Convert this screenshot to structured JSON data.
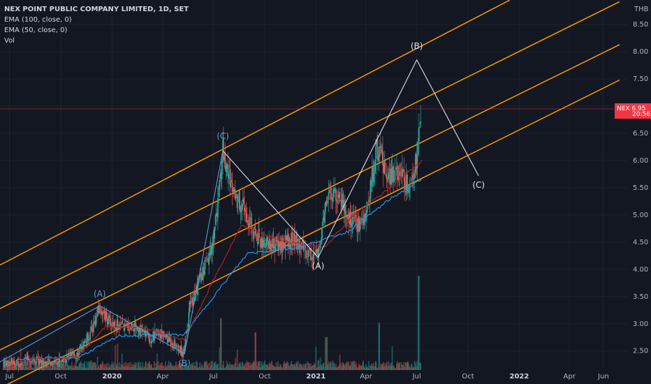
{
  "legend": {
    "title": "NEX POINT PUBLIC COMPANY LIMITED, 1D, SET",
    "ema100": "EMA (100, close, 0)",
    "ema50": "EMA (50, close, 0)",
    "vol": "Vol"
  },
  "price_badge": {
    "symbol": "NEX",
    "value": "6.95",
    "countdown": "20:56"
  },
  "colors": {
    "background": "#131722",
    "grid": "#1e222d",
    "up": "#26a69a",
    "down": "#ef5350",
    "ema100": "#2196f3",
    "ema50": "#b71c1c",
    "channel": "#ff9800",
    "wave_white": "#e0e3eb",
    "wave_blue": "#5b9bd5",
    "price_line": "#f23645"
  },
  "chart_data": {
    "type": "candlestick",
    "currency": "THB",
    "y_ticks": [
      "2.50",
      "3.00",
      "3.50",
      "4.00",
      "4.50",
      "5.00",
      "5.50",
      "6.00",
      "6.50",
      "7.00",
      "7.50",
      "8.00",
      "8.50"
    ],
    "ylim": [
      2.15,
      8.72
    ],
    "x_labels": [
      "Jul",
      "Oct",
      "2020",
      "Apr",
      "Jul",
      "Oct",
      "2021",
      "Apr",
      "Jul",
      "Oct",
      "2022",
      "Apr",
      "Jun"
    ],
    "x_label_years": [
      "2020",
      "2021",
      "2022"
    ],
    "last_price": 6.95,
    "price_path": [
      [
        "2019-06-20",
        2.3
      ],
      [
        "2019-07-15",
        2.28
      ],
      [
        "2019-08-10",
        2.35
      ],
      [
        "2019-09-05",
        2.28
      ],
      [
        "2019-10-01",
        2.33
      ],
      [
        "2019-11-01",
        2.45
      ],
      [
        "2019-11-25",
        2.85
      ],
      [
        "2019-12-10",
        3.3
      ],
      [
        "2019-12-25",
        3.05
      ],
      [
        "2020-01-15",
        2.95
      ],
      [
        "2020-02-15",
        2.95
      ],
      [
        "2020-03-10",
        2.72
      ],
      [
        "2020-03-25",
        2.85
      ],
      [
        "2020-04-20",
        2.65
      ],
      [
        "2020-05-08",
        2.45
      ],
      [
        "2020-05-20",
        3.3
      ],
      [
        "2020-06-10",
        3.9
      ],
      [
        "2020-06-25",
        4.2
      ],
      [
        "2020-07-10",
        5.2
      ],
      [
        "2020-07-18",
        6.18
      ],
      [
        "2020-08-01",
        5.6
      ],
      [
        "2020-08-20",
        5.2
      ],
      [
        "2020-09-10",
        4.7
      ],
      [
        "2020-10-01",
        4.5
      ],
      [
        "2020-10-25",
        4.45
      ],
      [
        "2020-11-20",
        4.55
      ],
      [
        "2020-12-20",
        4.3
      ],
      [
        "2021-01-08",
        4.25
      ],
      [
        "2021-01-20",
        5.3
      ],
      [
        "2021-02-10",
        5.45
      ],
      [
        "2021-03-01",
        4.95
      ],
      [
        "2021-03-20",
        4.8
      ],
      [
        "2021-04-05",
        5.1
      ],
      [
        "2021-04-20",
        6.3
      ],
      [
        "2021-05-10",
        5.7
      ],
      [
        "2021-05-30",
        5.8
      ],
      [
        "2021-06-15",
        5.55
      ],
      [
        "2021-07-01",
        6.0
      ],
      [
        "2021-07-10",
        6.95
      ]
    ],
    "ema100_path": [
      [
        "2019-07-15",
        2.35
      ],
      [
        "2019-11-01",
        2.38
      ],
      [
        "2020-01-15",
        2.78
      ],
      [
        "2020-05-10",
        2.8
      ],
      [
        "2020-07-01",
        3.5
      ],
      [
        "2020-09-01",
        4.3
      ],
      [
        "2020-12-01",
        4.4
      ],
      [
        "2021-03-01",
        4.7
      ],
      [
        "2021-05-15",
        5.3
      ],
      [
        "2021-07-10",
        5.65
      ]
    ],
    "ema50_path": [
      [
        "2019-07-15",
        2.32
      ],
      [
        "2019-11-01",
        2.4
      ],
      [
        "2019-12-20",
        2.95
      ],
      [
        "2020-03-01",
        2.92
      ],
      [
        "2020-05-10",
        2.7
      ],
      [
        "2020-07-01",
        3.8
      ],
      [
        "2020-08-20",
        4.8
      ],
      [
        "2020-11-01",
        4.52
      ],
      [
        "2021-01-15",
        4.4
      ],
      [
        "2021-03-10",
        5.0
      ],
      [
        "2021-05-15",
        5.5
      ],
      [
        "2021-07-10",
        6.0
      ]
    ],
    "volume_spikes": [
      [
        "2020-07-15",
        0.55
      ],
      [
        "2020-09-15",
        0.4
      ],
      [
        "2021-01-20",
        0.35
      ],
      [
        "2021-04-25",
        0.5
      ],
      [
        "2021-07-05",
        1.0
      ]
    ],
    "channel_lines": [
      [
        [
          "2019-06-14",
          4.08
        ],
        [
          "2021-12-15",
          8.95
        ]
      ],
      [
        [
          "2019-06-14",
          3.28
        ],
        [
          "2022-06-30",
          8.92
        ]
      ],
      [
        [
          "2019-06-14",
          2.52
        ],
        [
          "2022-06-30",
          8.13
        ]
      ],
      [
        [
          "2019-06-14",
          1.82
        ],
        [
          "2022-06-30",
          7.48
        ]
      ]
    ],
    "wave_white": [
      [
        "2020-07-18",
        6.18
      ],
      [
        "2021-01-05",
        4.22
      ],
      [
        "2021-07-01",
        7.85
      ],
      [
        "2021-10-20",
        5.72
      ]
    ],
    "wave_blue": [
      [
        "2019-06-14",
        2.3
      ],
      [
        "2019-12-10",
        3.33
      ],
      [
        "2020-05-10",
        2.45
      ],
      [
        "2020-07-18",
        6.18
      ]
    ],
    "wave_labels": [
      {
        "text": "(A)",
        "date": "2019-12-10",
        "price": 3.5,
        "color": "blue"
      },
      {
        "text": "(B)",
        "date": "2020-05-10",
        "price": 2.22,
        "color": "blue"
      },
      {
        "text": "(C)",
        "date": "2020-07-18",
        "price": 6.4,
        "color": "blue"
      },
      {
        "text": "(A)",
        "date": "2021-01-05",
        "price": 4.01,
        "color": "white"
      },
      {
        "text": "(B)",
        "date": "2021-07-01",
        "price": 8.05,
        "color": "white"
      },
      {
        "text": "(C)",
        "date": "2021-10-20",
        "price": 5.5,
        "color": "white"
      }
    ]
  }
}
